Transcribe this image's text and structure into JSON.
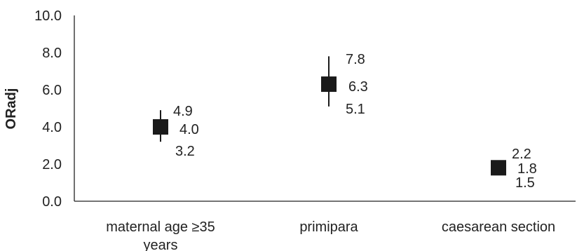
{
  "chart_data": {
    "type": "scatter",
    "title": "",
    "xlabel": "",
    "ylabel": "ORadj",
    "ylim": [
      0,
      10
    ],
    "yticks": [
      "0.0",
      "2.0",
      "4.0",
      "6.0",
      "8.0",
      "10.0"
    ],
    "grid": false,
    "categories": [
      "maternal age ≥35 years",
      "primipara",
      "caesarean section"
    ],
    "category_lines": [
      [
        "maternal age ≥35",
        "years"
      ],
      [
        "primipara"
      ],
      [
        "caesarean section"
      ]
    ],
    "points": [
      {
        "category": "maternal age ≥35 years",
        "value": 4.0,
        "upper": 4.9,
        "lower": 3.2,
        "value_label": "4.0",
        "upper_label": "4.9",
        "lower_label": "3.2"
      },
      {
        "category": "primipara",
        "value": 6.3,
        "upper": 7.8,
        "lower": 5.1,
        "value_label": "6.3",
        "upper_label": "7.8",
        "lower_label": "5.1"
      },
      {
        "category": "caesarean section",
        "value": 1.8,
        "upper": 2.2,
        "lower": 1.5,
        "value_label": "1.8",
        "upper_label": "2.2",
        "lower_label": "1.5"
      }
    ],
    "marker_color": "#1a1a1a",
    "axis_color": "#222222"
  }
}
